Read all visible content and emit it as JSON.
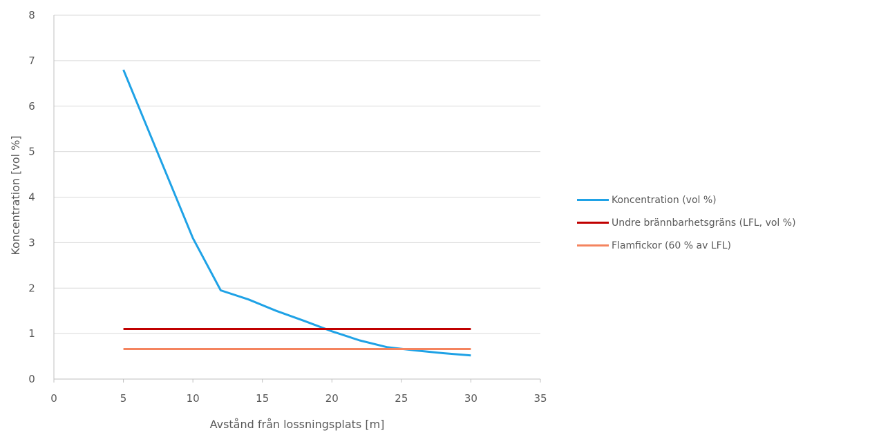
{
  "chart_data": {
    "type": "line",
    "xlabel": "Avstånd från lossningsplats [m]",
    "ylabel": "Koncentration [vol %]",
    "xlim": [
      0,
      35
    ],
    "ylim": [
      0,
      8
    ],
    "xticks": [
      "0",
      "5",
      "10",
      "15",
      "20",
      "25",
      "30",
      "35"
    ],
    "yticks": [
      "0",
      "1",
      "2",
      "3",
      "4",
      "5",
      "6",
      "7",
      "8"
    ],
    "grid": "horizontal",
    "legend_position": "right",
    "series": [
      {
        "name": "Koncentration (vol %)",
        "color": "#1fa2e6",
        "x": [
          5,
          10,
          12,
          14,
          16,
          18,
          20,
          22,
          24,
          26,
          28,
          30
        ],
        "y": [
          6.8,
          3.1,
          1.95,
          1.75,
          1.5,
          1.28,
          1.05,
          0.85,
          0.7,
          0.63,
          0.57,
          0.52
        ]
      },
      {
        "name": "Undre brännbarhetsgräns (LFL, vol %)",
        "color": "#c00000",
        "x": [
          5,
          30
        ],
        "y": [
          1.1,
          1.1
        ]
      },
      {
        "name": "Flamfickor (60 % av LFL)",
        "color": "#f4845f",
        "x": [
          5,
          30
        ],
        "y": [
          0.66,
          0.66
        ]
      }
    ]
  }
}
